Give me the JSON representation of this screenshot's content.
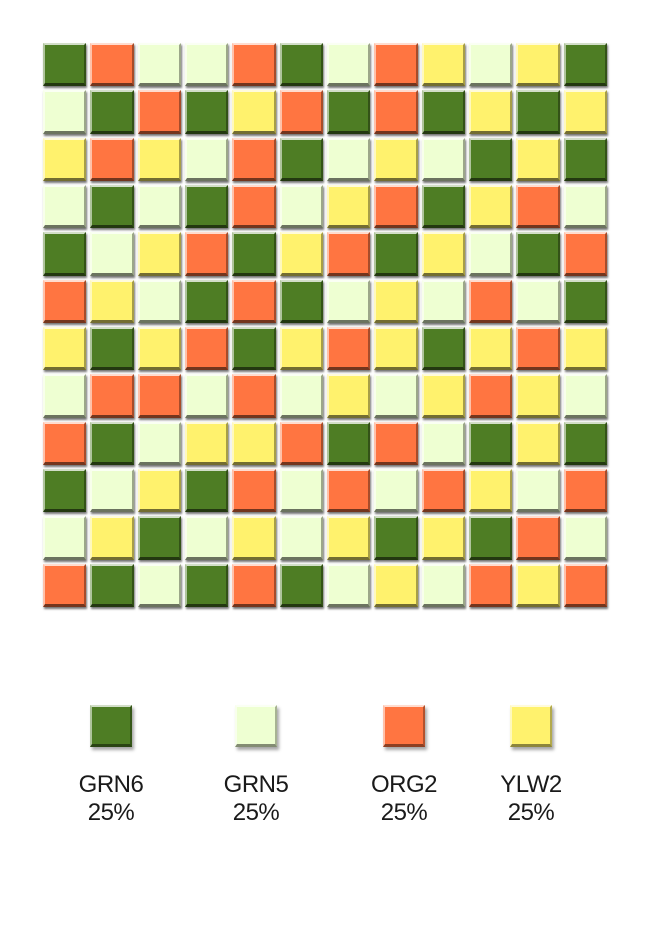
{
  "colors": {
    "GRN6": "#4e7d24",
    "GRN5": "#eeffd2",
    "ORG2": "#ff7541",
    "YLW2": "#fff26d"
  },
  "mosaic": {
    "rows": [
      [
        "GRN6",
        "ORG2",
        "GRN5",
        "GRN5",
        "ORG2",
        "GRN6",
        "GRN5",
        "ORG2",
        "YLW2",
        "GRN5",
        "YLW2",
        "GRN6"
      ],
      [
        "GRN5",
        "GRN6",
        "ORG2",
        "GRN6",
        "YLW2",
        "ORG2",
        "GRN6",
        "ORG2",
        "GRN6",
        "YLW2",
        "GRN6",
        "YLW2"
      ],
      [
        "YLW2",
        "ORG2",
        "YLW2",
        "GRN5",
        "ORG2",
        "GRN6",
        "GRN5",
        "YLW2",
        "GRN5",
        "GRN6",
        "YLW2",
        "GRN6"
      ],
      [
        "GRN5",
        "GRN6",
        "GRN5",
        "GRN6",
        "ORG2",
        "GRN5",
        "YLW2",
        "ORG2",
        "GRN6",
        "YLW2",
        "ORG2",
        "GRN5"
      ],
      [
        "GRN6",
        "GRN5",
        "YLW2",
        "ORG2",
        "GRN6",
        "YLW2",
        "ORG2",
        "GRN6",
        "YLW2",
        "GRN5",
        "GRN6",
        "ORG2"
      ],
      [
        "ORG2",
        "YLW2",
        "GRN5",
        "GRN6",
        "ORG2",
        "GRN6",
        "GRN5",
        "YLW2",
        "GRN5",
        "ORG2",
        "GRN5",
        "GRN6"
      ],
      [
        "YLW2",
        "GRN6",
        "YLW2",
        "ORG2",
        "GRN6",
        "YLW2",
        "ORG2",
        "YLW2",
        "GRN6",
        "YLW2",
        "ORG2",
        "YLW2"
      ],
      [
        "GRN5",
        "ORG2",
        "ORG2",
        "GRN5",
        "ORG2",
        "GRN5",
        "YLW2",
        "GRN5",
        "YLW2",
        "ORG2",
        "YLW2",
        "GRN5"
      ],
      [
        "ORG2",
        "GRN6",
        "GRN5",
        "YLW2",
        "YLW2",
        "ORG2",
        "GRN6",
        "ORG2",
        "GRN5",
        "GRN6",
        "YLW2",
        "GRN6"
      ],
      [
        "GRN6",
        "GRN5",
        "YLW2",
        "GRN6",
        "ORG2",
        "GRN5",
        "ORG2",
        "GRN5",
        "ORG2",
        "YLW2",
        "GRN5",
        "ORG2"
      ],
      [
        "GRN5",
        "YLW2",
        "GRN6",
        "GRN5",
        "YLW2",
        "GRN5",
        "YLW2",
        "GRN6",
        "YLW2",
        "GRN6",
        "ORG2",
        "GRN5"
      ],
      [
        "ORG2",
        "GRN6",
        "GRN5",
        "GRN6",
        "ORG2",
        "GRN6",
        "GRN5",
        "YLW2",
        "GRN5",
        "ORG2",
        "YLW2",
        "ORG2"
      ]
    ]
  },
  "legend": [
    {
      "code": "GRN6",
      "percent": "25%"
    },
    {
      "code": "GRN5",
      "percent": "25%"
    },
    {
      "code": "ORG2",
      "percent": "25%"
    },
    {
      "code": "YLW2",
      "percent": "25%"
    }
  ]
}
